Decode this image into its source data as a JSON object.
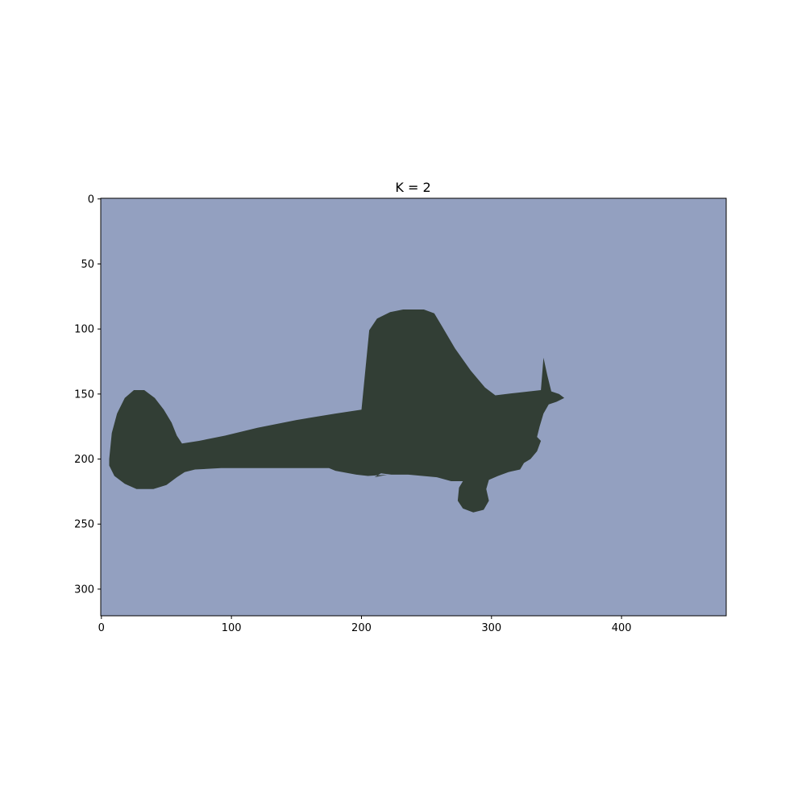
{
  "chart_data": {
    "type": "heatmap",
    "title": "K = 2",
    "xlabel": "",
    "ylabel": "",
    "xlim": [
      -0.5,
      480.5
    ],
    "ylim": [
      320.5,
      -0.5
    ],
    "xticks": [
      0,
      100,
      200,
      300,
      400
    ],
    "yticks": [
      0,
      50,
      100,
      150,
      200,
      250,
      300
    ],
    "clusters": [
      {
        "label": "background",
        "color": "#93a0c0"
      },
      {
        "label": "airplane",
        "color": "#323e35"
      }
    ],
    "shape_outline": [
      [
        6,
        200
      ],
      [
        8,
        180
      ],
      [
        12,
        165
      ],
      [
        18,
        153
      ],
      [
        25,
        147
      ],
      [
        33,
        147
      ],
      [
        41,
        153
      ],
      [
        48,
        162
      ],
      [
        54,
        172
      ],
      [
        58,
        182
      ],
      [
        62,
        188
      ],
      [
        75,
        186
      ],
      [
        95,
        182
      ],
      [
        120,
        176
      ],
      [
        150,
        170
      ],
      [
        180,
        165
      ],
      [
        200,
        162
      ],
      [
        206,
        101
      ],
      [
        212,
        92
      ],
      [
        222,
        87
      ],
      [
        232,
        85
      ],
      [
        248,
        85
      ],
      [
        256,
        88
      ],
      [
        262,
        98
      ],
      [
        272,
        115
      ],
      [
        284,
        132
      ],
      [
        295,
        145
      ],
      [
        303,
        151
      ],
      [
        320,
        149
      ],
      [
        338,
        147
      ],
      [
        340,
        122
      ],
      [
        343,
        136
      ],
      [
        346,
        148
      ],
      [
        352,
        150
      ],
      [
        356,
        153
      ],
      [
        350,
        156
      ],
      [
        344,
        158
      ],
      [
        340,
        165
      ],
      [
        337,
        175
      ],
      [
        335,
        183
      ],
      [
        338,
        186
      ],
      [
        335,
        194
      ],
      [
        330,
        200
      ],
      [
        325,
        203
      ],
      [
        322,
        208
      ],
      [
        313,
        210
      ],
      [
        305,
        213
      ],
      [
        298,
        216
      ],
      [
        296,
        223
      ],
      [
        298,
        232
      ],
      [
        294,
        239
      ],
      [
        286,
        241
      ],
      [
        278,
        238
      ],
      [
        274,
        232
      ],
      [
        275,
        222
      ],
      [
        278,
        217
      ],
      [
        269,
        217
      ],
      [
        258,
        214
      ],
      [
        236,
        212
      ],
      [
        223,
        212
      ],
      [
        215,
        211
      ],
      [
        210,
        214
      ],
      [
        220,
        212
      ],
      [
        205,
        213
      ],
      [
        196,
        212
      ],
      [
        180,
        209
      ],
      [
        175,
        207
      ],
      [
        150,
        207
      ],
      [
        120,
        207
      ],
      [
        92,
        207
      ],
      [
        72,
        208
      ],
      [
        64,
        210
      ],
      [
        58,
        214
      ],
      [
        50,
        220
      ],
      [
        40,
        223
      ],
      [
        27,
        223
      ],
      [
        18,
        219
      ],
      [
        10,
        213
      ],
      [
        6,
        205
      ]
    ]
  }
}
